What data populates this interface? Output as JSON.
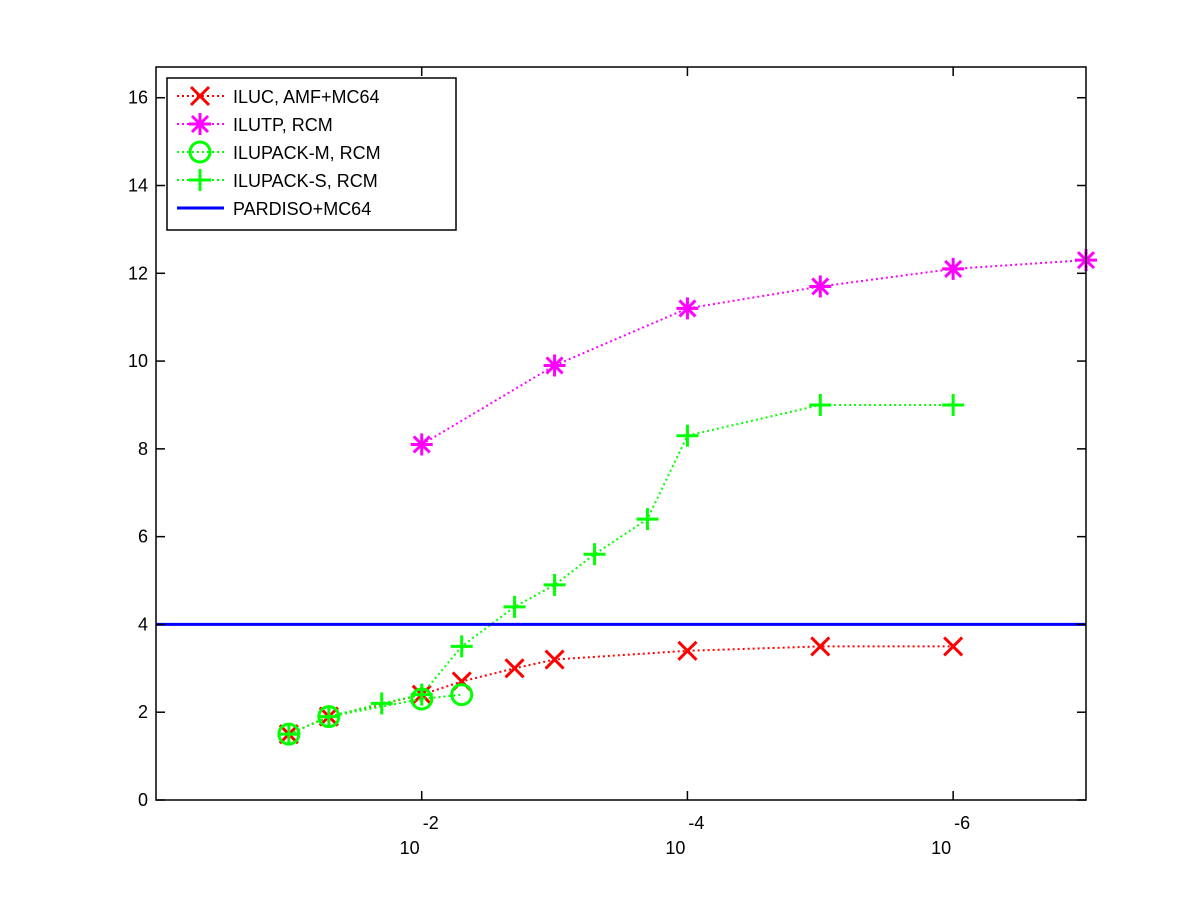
{
  "chart_data": {
    "type": "line",
    "title": "",
    "xlabel": "",
    "ylabel": "",
    "x_scale": "log",
    "x_reversed": true,
    "xlim": [
      1,
      1e-07
    ],
    "ylim": [
      0,
      16.7
    ],
    "x_tick_values": [
      0.01,
      0.0001,
      1e-06
    ],
    "x_tick_labels": [
      {
        "base": "10",
        "exponent": "-2"
      },
      {
        "base": "10",
        "exponent": "-4"
      },
      {
        "base": "10",
        "exponent": "-6"
      }
    ],
    "y_ticks": [
      0,
      2,
      4,
      6,
      8,
      10,
      12,
      14,
      16
    ],
    "y_tick_labels": [
      "0",
      "2",
      "4",
      "6",
      "8",
      "10",
      "12",
      "14",
      "16"
    ],
    "grid": false,
    "legend_placement": "top-left",
    "series": [
      {
        "name": "ILUC, AMF+MC64",
        "color": "#ff0000",
        "marker": "x",
        "line_style": "dotted",
        "x": [
          0.1,
          0.05,
          0.01,
          0.005,
          0.002,
          0.001,
          0.0001,
          1e-05,
          1e-06
        ],
        "y": [
          1.5,
          1.9,
          2.4,
          2.7,
          3.0,
          3.2,
          3.4,
          3.5,
          3.5
        ]
      },
      {
        "name": "ILUTP, RCM",
        "color": "#ff00ff",
        "marker": "asterisk",
        "line_style": "dotted",
        "x": [
          0.01,
          0.001,
          0.0001,
          1e-05,
          1e-06,
          1e-07
        ],
        "y": [
          8.1,
          9.9,
          11.2,
          11.7,
          12.1,
          12.3
        ]
      },
      {
        "name": "ILUPACK-M, RCM",
        "color": "#00ff00",
        "marker": "circle",
        "line_style": "dotted",
        "x": [
          0.1,
          0.05,
          0.01,
          0.005
        ],
        "y": [
          1.5,
          1.9,
          2.3,
          2.4
        ]
      },
      {
        "name": "ILUPACK-S, RCM",
        "color": "#00ff00",
        "marker": "plus",
        "line_style": "dotted",
        "x": [
          0.1,
          0.05,
          0.02,
          0.01,
          0.005,
          0.002,
          0.001,
          0.0005,
          0.0002,
          0.0001,
          1e-05,
          1e-06
        ],
        "y": [
          1.5,
          1.9,
          2.2,
          2.4,
          3.5,
          4.4,
          4.9,
          5.6,
          6.4,
          8.3,
          9.0,
          9.0
        ]
      },
      {
        "name": "PARDISO+MC64",
        "color": "#0000ff",
        "marker": "none",
        "line_style": "solid",
        "x": [
          1,
          1e-07
        ],
        "y": [
          4.0,
          4.0
        ]
      }
    ]
  }
}
